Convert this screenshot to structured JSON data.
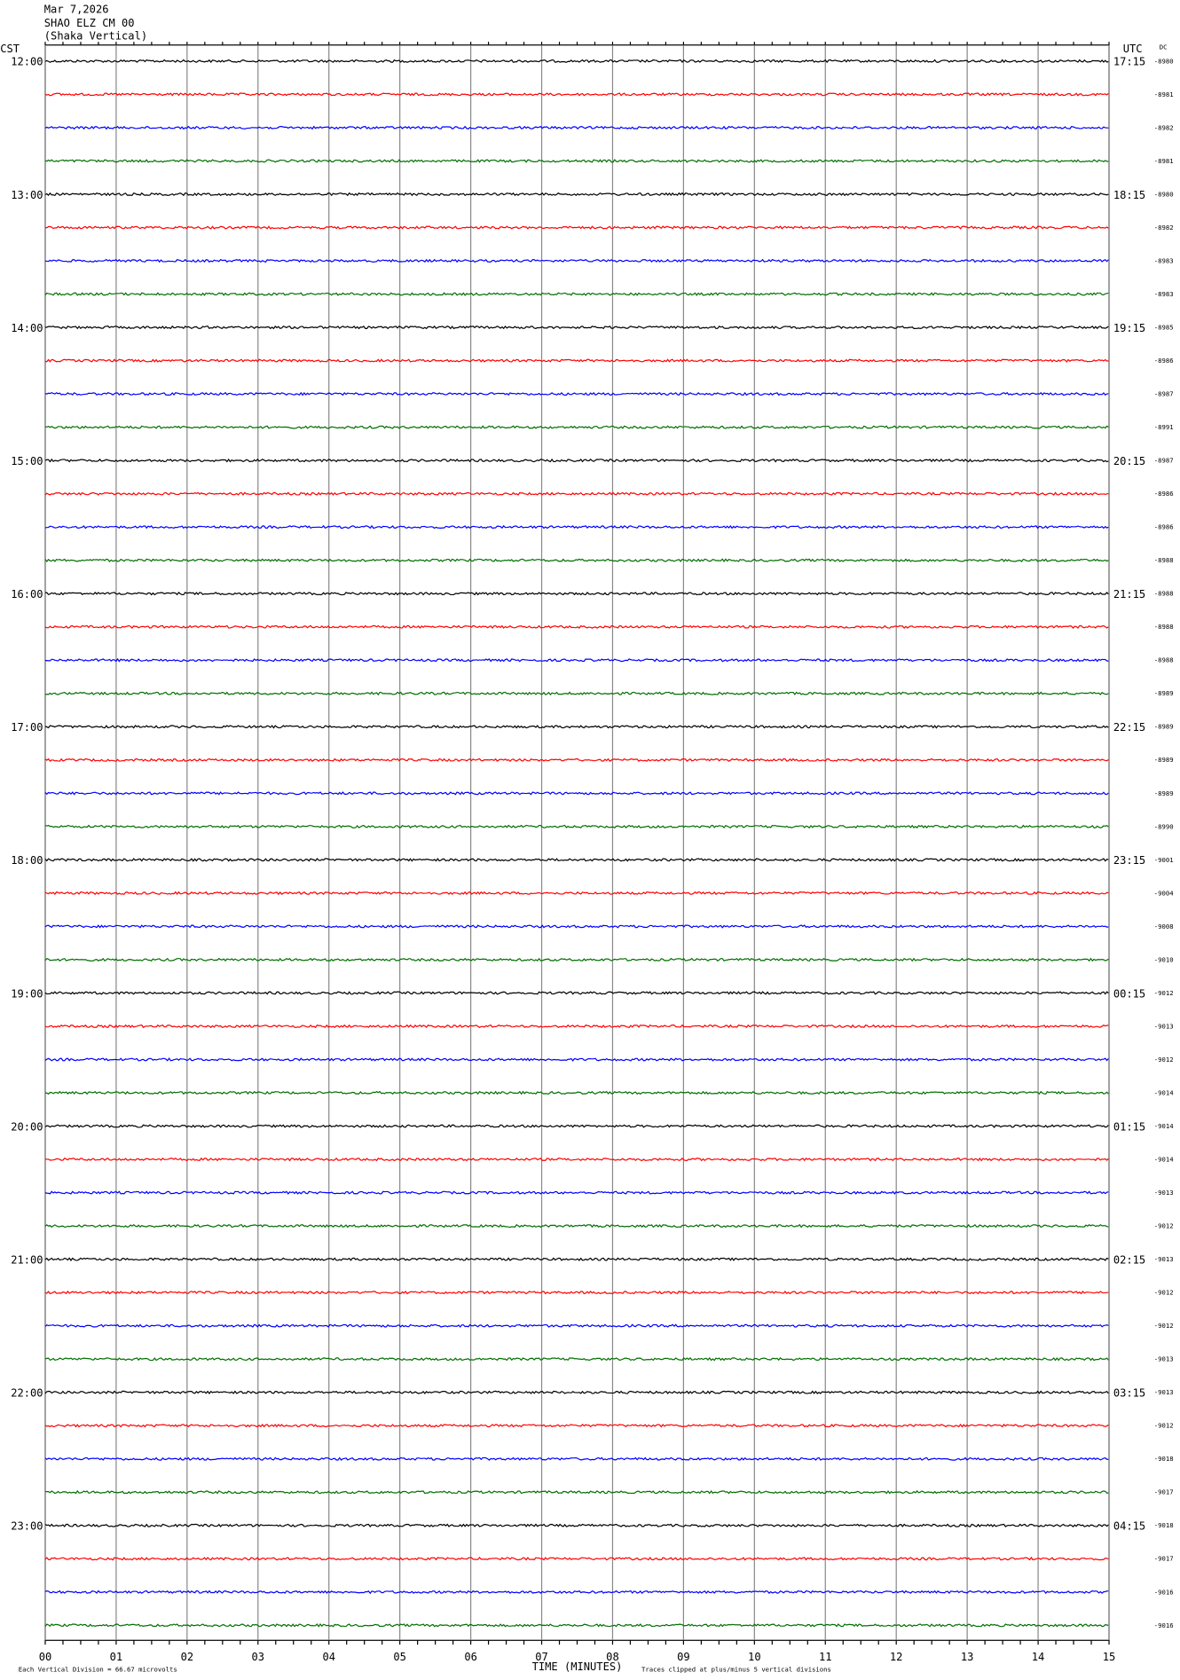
{
  "header": {
    "date": "Mar 7,2026",
    "station": "SHAO ELZ CM 00",
    "name": "(Shaka Vertical)"
  },
  "left_axis_title": "CST",
  "right_axis_title": "UTC",
  "dc_title": "DC",
  "cst_labels": [
    "12:00",
    "13:00",
    "14:00",
    "15:00",
    "16:00",
    "17:00",
    "18:00",
    "19:00",
    "20:00",
    "21:00",
    "22:00",
    "23:00"
  ],
  "utc_labels": [
    "17:15",
    "18:15",
    "19:15",
    "20:15",
    "21:15",
    "22:15",
    "23:15",
    "00:15",
    "01:15",
    "02:15",
    "03:15",
    "04:15"
  ],
  "dc_values": [
    "-8980",
    "-8981",
    "-8982",
    "-8981",
    "-8980",
    "-8982",
    "-8983",
    "-8983",
    "-8985",
    "-8986",
    "-8987",
    "-8991",
    "-8987",
    "-8986",
    "-8986",
    "-8988",
    "-8988",
    "-8988",
    "-8988",
    "-8989",
    "-8989",
    "-8989",
    "-8989",
    "-8990",
    "-9001",
    "-9004",
    "-9008",
    "-9010",
    "-9012",
    "-9013",
    "-9012",
    "-9014",
    "-9014",
    "-9014",
    "-9013",
    "-9012",
    "-9013",
    "-9012",
    "-9012",
    "-9013",
    "-9013",
    "-9012",
    "-9018",
    "-9017",
    "-9018",
    "-9017",
    "-9016",
    "-9016"
  ],
  "trace_colors": [
    "#000000",
    "#ff0000",
    "#0000ff",
    "#007000"
  ],
  "x_tick_labels": [
    "00",
    "01",
    "02",
    "03",
    "04",
    "05",
    "06",
    "07",
    "08",
    "09",
    "10",
    "11",
    "12",
    "13",
    "14",
    "15"
  ],
  "x_axis_title": "TIME (MINUTES)",
  "footer_left": "Each Vertical Division =  66.67 microvolts",
  "footer_right": "Traces clipped at plus/minus 5 vertical divisions"
}
